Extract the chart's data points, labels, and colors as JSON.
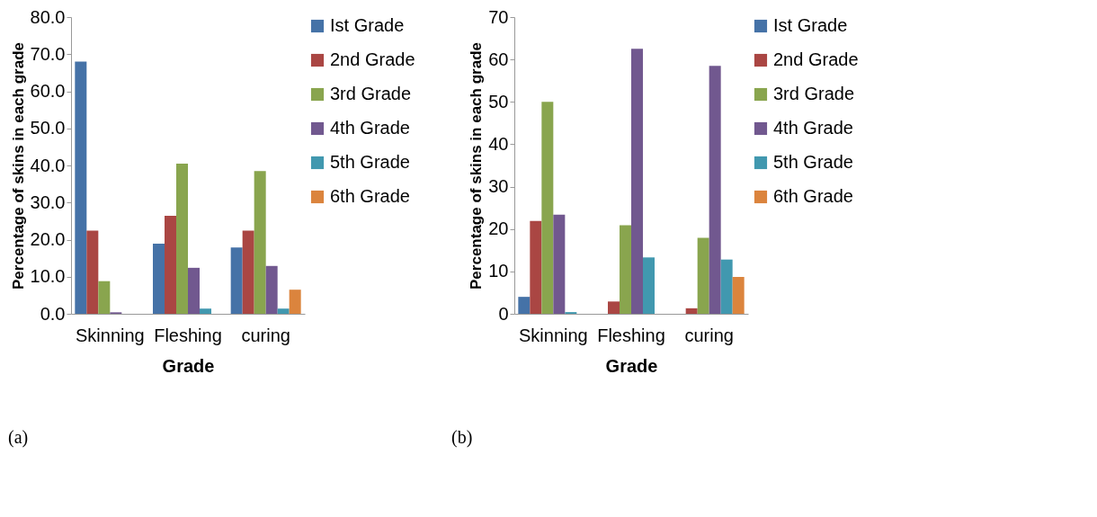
{
  "chart_data": [
    {
      "type": "bar",
      "xlabel": "Grade",
      "ylabel": "Percentage  of skins in each grade",
      "categories": [
        "Skinning",
        "Fleshing",
        "curing"
      ],
      "series": [
        {
          "name": "Ist Grade",
          "color": "#4572a7",
          "values": [
            68.0,
            18.9,
            17.9
          ]
        },
        {
          "name": "2nd Grade",
          "color": "#aa4643",
          "values": [
            22.4,
            26.4,
            22.4
          ]
        },
        {
          "name": "3rd Grade",
          "color": "#89a54e",
          "values": [
            8.8,
            40.5,
            38.5
          ]
        },
        {
          "name": "4th Grade",
          "color": "#71588f",
          "values": [
            0.4,
            12.4,
            12.9
          ]
        },
        {
          "name": "5th Grade",
          "color": "#4198af",
          "values": [
            0,
            1.4,
            1.4
          ]
        },
        {
          "name": "6th Grade",
          "color": "#db843d",
          "values": [
            0,
            0,
            6.5
          ]
        }
      ],
      "ylim": [
        0,
        80
      ],
      "yticks": [
        {
          "value": 0,
          "label": "0.0"
        },
        {
          "value": 10,
          "label": "10.0"
        },
        {
          "value": 20,
          "label": "20.0"
        },
        {
          "value": 30,
          "label": "30.0"
        },
        {
          "value": 40,
          "label": "40.0"
        },
        {
          "value": 50,
          "label": "50.0"
        },
        {
          "value": 60,
          "label": "60.0"
        },
        {
          "value": 70,
          "label": "70.0"
        },
        {
          "value": 80,
          "label": "80.0"
        }
      ],
      "grid": false,
      "legend": "right",
      "annotations": [
        "(a)"
      ]
    },
    {
      "type": "bar",
      "xlabel": "Grade",
      "ylabel": "Percentage  of skins in each grade",
      "categories": [
        "Skinning",
        "Fleshing",
        "curing"
      ],
      "series": [
        {
          "name": "Ist Grade",
          "color": "#4572a7",
          "values": [
            4.0,
            0,
            0
          ]
        },
        {
          "name": "2nd Grade",
          "color": "#aa4643",
          "values": [
            21.9,
            2.9,
            1.3
          ]
        },
        {
          "name": "3rd Grade",
          "color": "#89a54e",
          "values": [
            50,
            20.9,
            17.9
          ]
        },
        {
          "name": "4th Grade",
          "color": "#71588f",
          "values": [
            23.4,
            62.5,
            58.5
          ]
        },
        {
          "name": "5th Grade",
          "color": "#4198af",
          "values": [
            0.4,
            13.3,
            12.8
          ]
        },
        {
          "name": "6th Grade",
          "color": "#db843d",
          "values": [
            0,
            0,
            8.7
          ]
        }
      ],
      "ylim": [
        0,
        70
      ],
      "yticks": [
        0,
        10,
        20,
        30,
        40,
        50,
        60,
        70
      ],
      "grid": false,
      "legend": "right",
      "annotations": [
        "(b)"
      ]
    }
  ]
}
